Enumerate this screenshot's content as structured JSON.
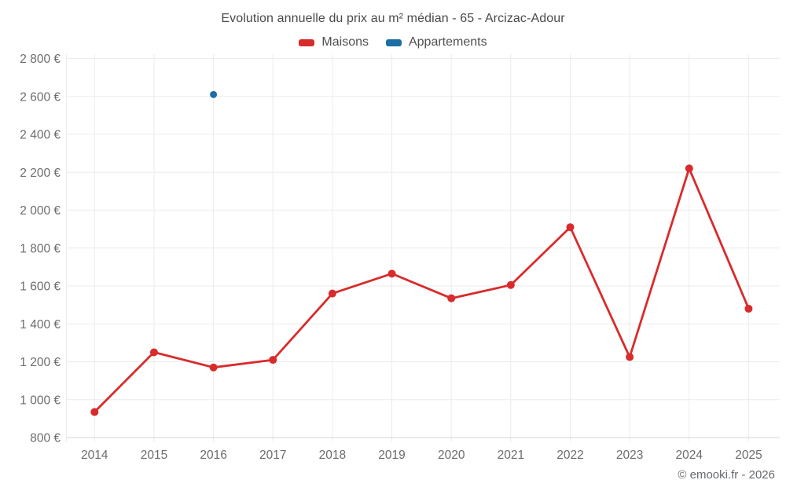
{
  "header": {
    "title": "Evolution annuelle du prix au m² médian - 65 - Arcizac-Adour"
  },
  "legend": {
    "items": [
      {
        "label": "Maisons",
        "color": "#d92b2b"
      },
      {
        "label": "Appartements",
        "color": "#1c6ea4"
      }
    ]
  },
  "footer": {
    "credit": "© emooki.fr - 2026"
  },
  "chart_data": {
    "type": "line",
    "title": "Evolution annuelle du prix au m² médian - 65 - Arcizac-Adour",
    "categories": [
      "2014",
      "2015",
      "2016",
      "2017",
      "2018",
      "2019",
      "2020",
      "2021",
      "2022",
      "2023",
      "2024",
      "2025"
    ],
    "series": [
      {
        "name": "Maisons",
        "color": "#d92b2b",
        "marker_radius": 5,
        "values": [
          935,
          1250,
          1170,
          1210,
          1560,
          1665,
          1535,
          1605,
          1910,
          1225,
          2220,
          1480
        ]
      },
      {
        "name": "Appartements",
        "color": "#1c6ea4",
        "marker_radius": 4.5,
        "values": [
          null,
          null,
          2610,
          null,
          null,
          null,
          null,
          null,
          null,
          null,
          null,
          null
        ]
      }
    ],
    "xlabel": "",
    "ylabel": "",
    "ylim": [
      800,
      2800
    ],
    "y_tick_step": 200,
    "y_tick_labels": [
      "800 €",
      "1 000 €",
      "1 200 €",
      "1 400 €",
      "1 600 €",
      "1 800 €",
      "2 000 €",
      "2 200 €",
      "2 400 €",
      "2 600 €",
      "2 800 €"
    ],
    "currency": "€",
    "grid": true,
    "legend_position": "top",
    "colors": {
      "gridline": "#ececec",
      "axis_line": "#d7d7d7",
      "tick_label": "#6c6c6c",
      "title_text": "#4a4a4a"
    }
  }
}
